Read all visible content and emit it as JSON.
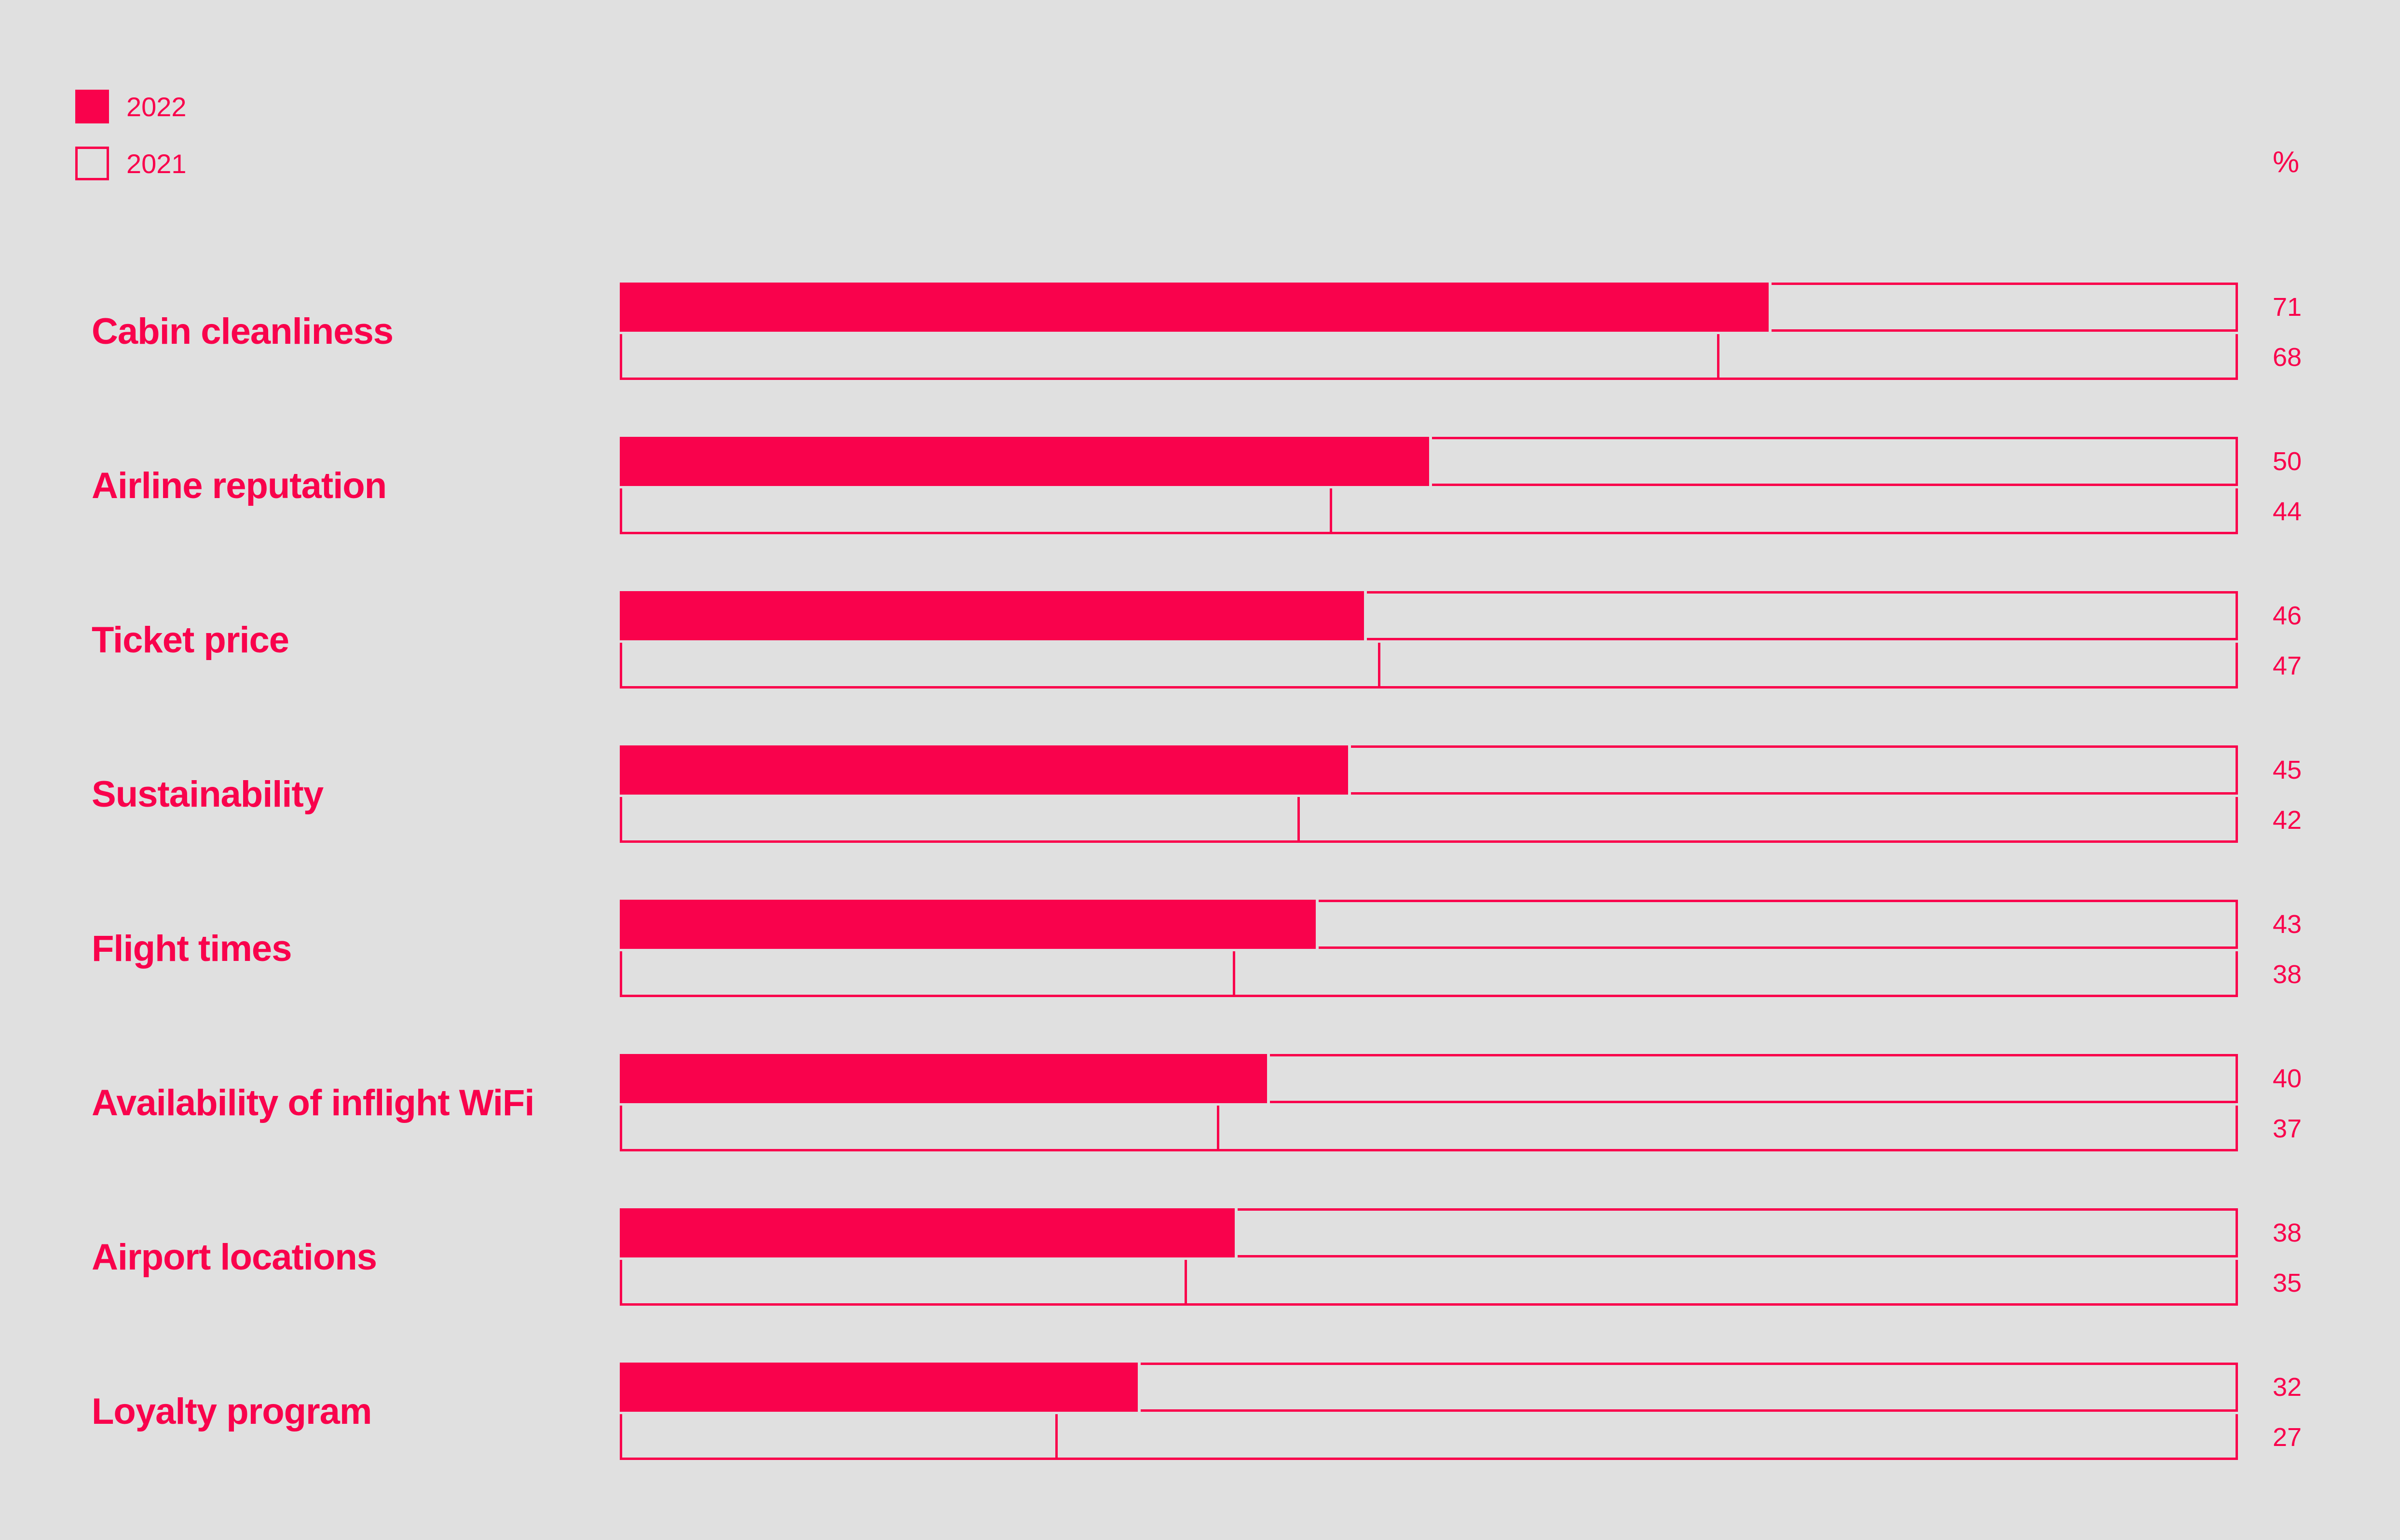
{
  "unit_label": "%",
  "colors": {
    "accent": "#F9024C",
    "background": "#E0E0E0"
  },
  "legend": {
    "items": [
      {
        "label": "2022",
        "swatch": "filled"
      },
      {
        "label": "2021",
        "swatch": "outlined"
      }
    ]
  },
  "chart_data": {
    "type": "bar",
    "orientation": "horizontal",
    "title": "",
    "unit": "%",
    "xlim": [
      0,
      100
    ],
    "grid": false,
    "legend_position": "top-left",
    "value_labels_position": "right",
    "categories": [
      "Cabin cleanliness",
      "Airline reputation",
      "Ticket price",
      "Sustainability",
      "Flight times",
      "Availability of inflight WiFi",
      "Airport locations",
      "Loyalty program"
    ],
    "series": [
      {
        "name": "2022",
        "style": "filled",
        "values": [
          71,
          50,
          46,
          45,
          43,
          40,
          38,
          32
        ]
      },
      {
        "name": "2021",
        "style": "outlined",
        "values": [
          68,
          44,
          47,
          42,
          38,
          37,
          35,
          27
        ]
      }
    ]
  }
}
